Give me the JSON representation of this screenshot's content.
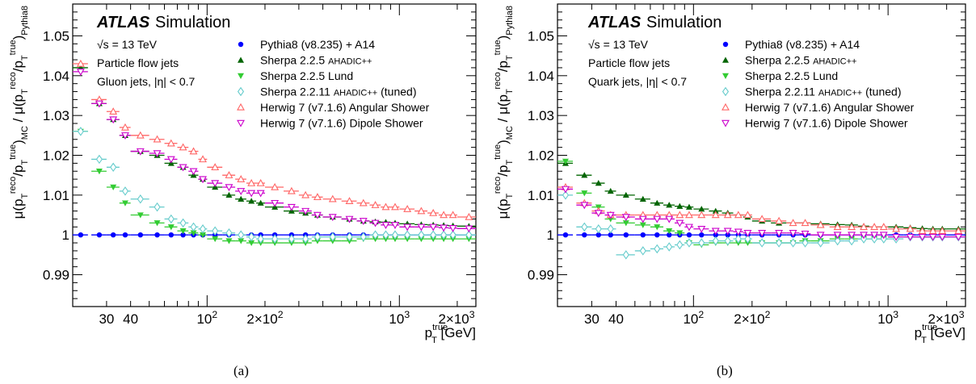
{
  "chart_data": [
    {
      "type": "scatter",
      "panel_label": "(a)",
      "experiment": "ATLAS",
      "experiment_tag": "Simulation",
      "info_lines": [
        "√s = 13 TeV",
        "Particle flow jets",
        "Gluon jets, |η| < 0.7"
      ],
      "xlabel": "p_T^true [GeV]",
      "ylabel": "μ(p_T^reco/p_T^true)_MC / μ(p_T^reco/p_T^true)_Pythia8",
      "xscale": "log",
      "xlim": [
        20,
        2500
      ],
      "ylim": [
        0.982,
        1.058
      ],
      "x_tick_labels": [
        "30",
        "40",
        "10^2",
        "2×10^2",
        "10^3",
        "2×10^3"
      ],
      "y_tick_labels": [
        "0.99",
        "1",
        "1.01",
        "1.02",
        "1.03",
        "1.04",
        "1.05"
      ],
      "x": [
        22,
        27.5,
        32.5,
        37.5,
        45,
        55,
        65,
        75,
        85,
        95,
        110,
        130,
        150,
        170,
        190,
        225,
        275,
        325,
        375,
        450,
        550,
        650,
        750,
        850,
        950,
        1100,
        1300,
        1500,
        1700,
        1900,
        2300
      ],
      "x_err": [
        [
          20,
          24
        ],
        [
          25,
          30
        ],
        [
          30,
          35
        ],
        [
          35,
          40
        ],
        [
          40,
          50
        ],
        [
          50,
          60
        ],
        [
          60,
          70
        ],
        [
          70,
          80
        ],
        [
          80,
          90
        ],
        [
          90,
          100
        ],
        [
          100,
          120
        ],
        [
          120,
          140
        ],
        [
          140,
          160
        ],
        [
          160,
          180
        ],
        [
          180,
          200
        ],
        [
          200,
          250
        ],
        [
          250,
          300
        ],
        [
          300,
          350
        ],
        [
          350,
          400
        ],
        [
          400,
          500
        ],
        [
          500,
          600
        ],
        [
          600,
          700
        ],
        [
          700,
          800
        ],
        [
          800,
          900
        ],
        [
          900,
          1000
        ],
        [
          1000,
          1200
        ],
        [
          1200,
          1400
        ],
        [
          1400,
          1600
        ],
        [
          1600,
          1800
        ],
        [
          1800,
          2000
        ],
        [
          2000,
          2500
        ]
      ],
      "series": [
        {
          "name": "Pythia8 (v8.235) + A14",
          "marker": "circle",
          "color": "#0000ff",
          "values": [
            1.0,
            1.0,
            1.0,
            1.0,
            1.0,
            1.0,
            1.0,
            1.0,
            1.0,
            1.0,
            1.0,
            1.0,
            1.0,
            1.0,
            1.0,
            1.0,
            1.0,
            1.0,
            1.0,
            1.0,
            1.0,
            1.0,
            1.0,
            1.0,
            1.0,
            1.0,
            1.0,
            1.0,
            1.0,
            1.0,
            1.0
          ]
        },
        {
          "name": "Sherpa 2.2.5 AHADIC++",
          "marker": "triangle-up",
          "color": "#006400",
          "values": [
            1.042,
            1.033,
            1.029,
            1.025,
            1.021,
            1.02,
            1.018,
            1.017,
            1.015,
            1.014,
            1.012,
            1.01,
            1.009,
            1.0085,
            1.008,
            1.007,
            1.006,
            1.0055,
            1.005,
            1.0045,
            1.004,
            1.0035,
            1.0033,
            1.0032,
            1.003,
            1.0028,
            1.0026,
            1.0025,
            1.0024,
            1.0023,
            1.0022
          ]
        },
        {
          "name": "Sherpa 2.2.5 Lund",
          "marker": "triangle-down",
          "color": "#33cc33",
          "values": [
            1.026,
            1.016,
            1.012,
            1.008,
            1.005,
            1.003,
            1.002,
            1.001,
            1.0005,
            1.0,
            0.999,
            0.9985,
            0.9985,
            0.998,
            0.998,
            0.998,
            0.998,
            0.998,
            0.9985,
            0.9985,
            0.9985,
            0.999,
            0.999,
            0.999,
            0.999,
            0.999,
            0.999,
            0.999,
            0.999,
            0.999,
            0.999
          ]
        },
        {
          "name": "Sherpa 2.2.11 AHADIC++ (tuned)",
          "marker": "diamond-open",
          "color": "#66cccc",
          "values": [
            1.026,
            1.019,
            1.017,
            1.011,
            1.009,
            1.007,
            1.004,
            1.003,
            1.002,
            1.0015,
            1.001,
            1.0005,
            1.0,
            0.9995,
            0.999,
            0.999,
            0.999,
            0.999,
            0.9995,
            0.9995,
            0.9995,
            0.9995,
            1.0,
            1.0,
            1.0,
            1.0,
            1.0,
            1.0,
            1.0,
            1.0,
            1.0
          ]
        },
        {
          "name": "Herwig 7 (v7.1.6) Angular Shower",
          "marker": "triangle-up-open",
          "color": "#ff6666",
          "values": [
            1.043,
            1.034,
            1.031,
            1.027,
            1.025,
            1.024,
            1.023,
            1.022,
            1.021,
            1.019,
            1.017,
            1.015,
            1.014,
            1.013,
            1.013,
            1.012,
            1.011,
            1.01,
            1.0095,
            1.009,
            1.0085,
            1.008,
            1.0075,
            1.007,
            1.007,
            1.0065,
            1.006,
            1.0055,
            1.005,
            1.005,
            1.0045
          ]
        },
        {
          "name": "Herwig 7 (v7.1.6) Dipole Shower",
          "marker": "triangle-down-open",
          "color": "#cc00cc",
          "values": [
            1.041,
            1.033,
            1.029,
            1.025,
            1.021,
            1.0205,
            1.019,
            1.017,
            1.016,
            1.014,
            1.013,
            1.012,
            1.011,
            1.0105,
            1.0105,
            1.008,
            1.007,
            1.006,
            1.005,
            1.0045,
            1.004,
            1.0035,
            1.003,
            1.0025,
            1.0025,
            1.002,
            1.002,
            1.002,
            1.0018,
            1.0017,
            1.0016
          ]
        }
      ]
    },
    {
      "type": "scatter",
      "panel_label": "(b)",
      "experiment": "ATLAS",
      "experiment_tag": "Simulation",
      "info_lines": [
        "√s = 13 TeV",
        "Particle flow jets",
        "Quark jets, |η| < 0.7"
      ],
      "xlabel": "p_T^true [GeV]",
      "ylabel": "μ(p_T^reco/p_T^true)_MC / μ(p_T^reco/p_T^true)_Pythia8",
      "xscale": "log",
      "xlim": [
        20,
        2500
      ],
      "ylim": [
        0.982,
        1.058
      ],
      "x_tick_labels": [
        "30",
        "40",
        "10^2",
        "2×10^2",
        "10^3",
        "2×10^3"
      ],
      "y_tick_labels": [
        "0.99",
        "1",
        "1.01",
        "1.02",
        "1.03",
        "1.04",
        "1.05"
      ],
      "x": [
        22,
        27.5,
        32.5,
        37.5,
        45,
        55,
        65,
        75,
        85,
        95,
        110,
        130,
        150,
        170,
        190,
        225,
        275,
        325,
        375,
        450,
        550,
        650,
        750,
        850,
        950,
        1100,
        1300,
        1500,
        1700,
        1900,
        2300
      ],
      "x_err": [
        [
          20,
          24
        ],
        [
          25,
          30
        ],
        [
          30,
          35
        ],
        [
          35,
          40
        ],
        [
          40,
          50
        ],
        [
          50,
          60
        ],
        [
          60,
          70
        ],
        [
          70,
          80
        ],
        [
          80,
          90
        ],
        [
          90,
          100
        ],
        [
          100,
          120
        ],
        [
          120,
          140
        ],
        [
          140,
          160
        ],
        [
          160,
          180
        ],
        [
          180,
          200
        ],
        [
          200,
          250
        ],
        [
          250,
          300
        ],
        [
          300,
          350
        ],
        [
          350,
          400
        ],
        [
          400,
          500
        ],
        [
          500,
          600
        ],
        [
          600,
          700
        ],
        [
          700,
          800
        ],
        [
          800,
          900
        ],
        [
          900,
          1000
        ],
        [
          1000,
          1200
        ],
        [
          1200,
          1400
        ],
        [
          1400,
          1600
        ],
        [
          1600,
          1800
        ],
        [
          1800,
          2000
        ],
        [
          2000,
          2500
        ]
      ],
      "series": [
        {
          "name": "Pythia8 (v8.235) + A14",
          "marker": "circle",
          "color": "#0000ff",
          "values": [
            1.0,
            1.0,
            1.0,
            1.0,
            1.0,
            1.0,
            1.0,
            1.0,
            1.0,
            1.0,
            1.0,
            1.0,
            1.0,
            1.0,
            1.0,
            1.0,
            1.0,
            1.0,
            1.0,
            1.0,
            1.0,
            1.0,
            1.0,
            1.0,
            1.0,
            1.0,
            1.0,
            1.0,
            1.0,
            1.0,
            1.0
          ]
        },
        {
          "name": "Sherpa 2.2.5 AHADIC++",
          "marker": "triangle-up",
          "color": "#006400",
          "values": [
            1.018,
            1.015,
            1.013,
            1.011,
            1.01,
            1.009,
            1.008,
            1.0075,
            1.0072,
            1.007,
            1.0065,
            1.006,
            1.0055,
            1.005,
            1.0045,
            1.0035,
            1.003,
            1.003,
            1.003,
            1.0028,
            1.0026,
            1.0025,
            1.0022,
            1.002,
            1.002,
            1.002,
            1.0018,
            1.0016,
            1.0015,
            1.0015,
            1.0015
          ]
        },
        {
          "name": "Sherpa 2.2.5 Lund",
          "marker": "triangle-down",
          "color": "#33cc33",
          "values": [
            1.0185,
            1.0105,
            1.007,
            1.004,
            1.003,
            1.0025,
            1.002,
            1.001,
            1.0005,
            0.998,
            0.9975,
            0.998,
            0.998,
            0.998,
            0.998,
            0.998,
            0.998,
            0.998,
            0.9985,
            0.9985,
            0.999,
            0.999,
            0.999,
            0.999,
            0.999,
            0.9995,
            0.9995,
            0.9995,
            0.9995,
            0.9995,
            0.9995
          ]
        },
        {
          "name": "Sherpa 2.2.11 AHADIC++ (tuned)",
          "marker": "diamond-open",
          "color": "#66cccc",
          "values": [
            1.01,
            1.002,
            1.0015,
            1.0015,
            0.995,
            0.996,
            0.9965,
            0.997,
            0.9975,
            0.998,
            0.998,
            0.9985,
            0.9985,
            0.999,
            0.999,
            0.998,
            0.998,
            0.998,
            0.998,
            0.998,
            0.9985,
            0.9985,
            0.999,
            0.999,
            0.999,
            0.999,
            0.9995,
            0.9995,
            0.9995,
            0.9995,
            0.9995
          ]
        },
        {
          "name": "Herwig 7 (v7.1.6) Angular Shower",
          "marker": "triangle-up-open",
          "color": "#ff6666",
          "values": [
            1.012,
            1.008,
            1.006,
            1.005,
            1.005,
            1.005,
            1.005,
            1.005,
            1.005,
            1.005,
            1.005,
            1.005,
            1.005,
            1.005,
            1.005,
            1.004,
            1.0035,
            1.003,
            1.003,
            1.0025,
            1.002,
            1.002,
            1.002,
            1.002,
            1.002,
            1.0015,
            1.0015,
            1.001,
            1.001,
            1.001,
            1.001
          ]
        },
        {
          "name": "Herwig 7 (v7.1.6) Dipole Shower",
          "marker": "triangle-down-open",
          "color": "#cc00cc",
          "values": [
            1.0115,
            1.0075,
            1.0055,
            1.005,
            1.0045,
            1.004,
            1.004,
            1.004,
            1.003,
            1.002,
            1.0015,
            1.001,
            1.001,
            1.0008,
            1.0005,
            1.0005,
            1.0005,
            1.0005,
            1.0003,
            1.0,
            1.0,
            1.0,
            1.0,
            1.0,
            1.0,
            0.9995,
            0.9995,
            0.9995,
            0.9995,
            0.9995,
            0.9995
          ]
        }
      ]
    }
  ]
}
